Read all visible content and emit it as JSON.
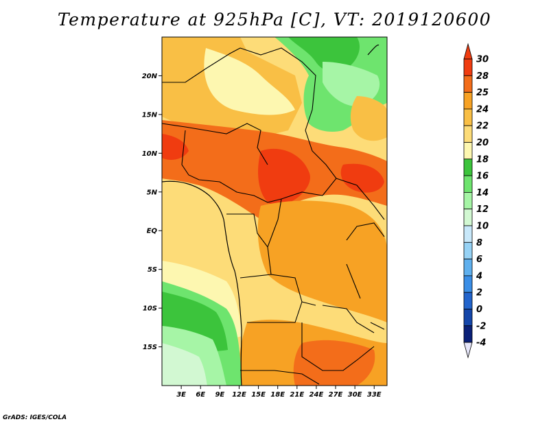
{
  "title": "Temperature at 925hPa [C], VT: 2019120600",
  "credit": "GrADS: IGES/COLA",
  "map": {
    "lat_labels": [
      "20N",
      "15N",
      "10N",
      "5N",
      "EQ",
      "5S",
      "10S",
      "15S"
    ],
    "lat_values": [
      20,
      15,
      10,
      5,
      0,
      -5,
      -10,
      -15
    ],
    "lon_labels": [
      "3E",
      "6E",
      "9E",
      "12E",
      "15E",
      "18E",
      "21E",
      "24E",
      "27E",
      "30E",
      "33E"
    ],
    "lon_values": [
      3,
      6,
      9,
      12,
      15,
      18,
      21,
      24,
      27,
      30,
      33
    ],
    "lon_range": [
      0,
      35
    ],
    "lat_range": [
      -20,
      25
    ]
  },
  "colorbar": {
    "labels": [
      "30",
      "28",
      "25",
      "24",
      "22",
      "20",
      "18",
      "16",
      "14",
      "12",
      "10",
      "8",
      "6",
      "4",
      "2",
      "0",
      "-2",
      "-4"
    ],
    "colors": [
      "#f03c10",
      "#f36d1a",
      "#f7a224",
      "#f9bf45",
      "#fddc78",
      "#fdf7b0",
      "#3cc43c",
      "#6ee46e",
      "#a6f5a6",
      "#d2f8d2",
      "#c8e8fa",
      "#96d2f5",
      "#5fb0ee",
      "#3a8ee6",
      "#2264cc",
      "#1446aa",
      "#0a2078",
      "#e6e6fa"
    ]
  }
}
